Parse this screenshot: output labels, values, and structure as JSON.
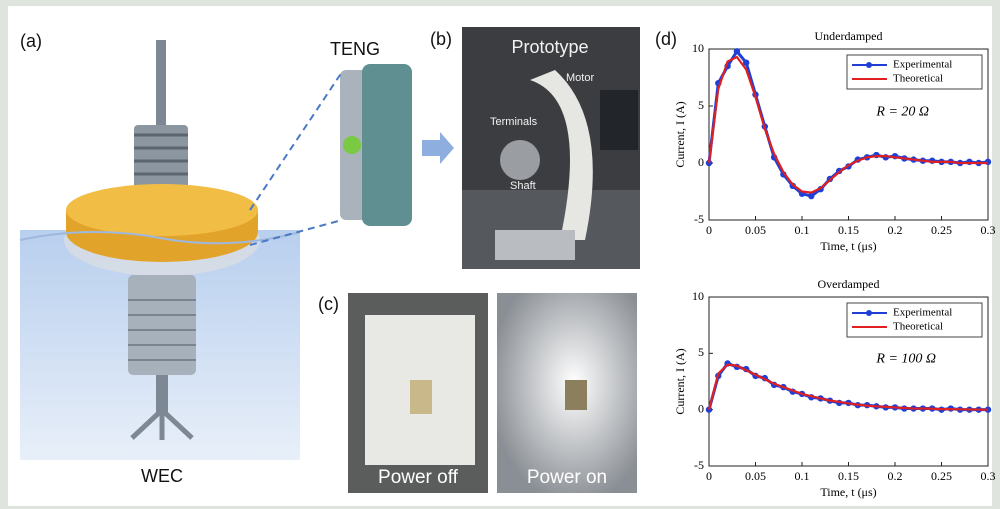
{
  "panels": {
    "a": {
      "label": "(a)",
      "teng": "TENG",
      "wec": "WEC"
    },
    "b": {
      "label": "(b)",
      "title": "Prototype",
      "motor": "Motor",
      "terminals": "Terminals",
      "shaft": "Shaft"
    },
    "c": {
      "label": "(c)",
      "off": "Power off",
      "on": "Power on"
    },
    "d": {
      "label": "(d)"
    }
  },
  "chart_data": [
    {
      "type": "line",
      "title": "Underdamped",
      "x_label": "Time, t (μs)",
      "y_label": "Current, I (A)",
      "annotation": "R = 20 Ω",
      "x": [
        0,
        0.01,
        0.02,
        0.03,
        0.04,
        0.05,
        0.06,
        0.07,
        0.08,
        0.09,
        0.1,
        0.11,
        0.12,
        0.13,
        0.14,
        0.15,
        0.16,
        0.17,
        0.18,
        0.19,
        0.2,
        0.21,
        0.22,
        0.23,
        0.24,
        0.25,
        0.26,
        0.27,
        0.28,
        0.29,
        0.3
      ],
      "series": [
        {
          "name": "Experimental",
          "color": "#1f3fd6",
          "markers": true,
          "values": [
            0,
            7.0,
            8.5,
            9.8,
            8.8,
            6.0,
            3.2,
            0.5,
            -1.0,
            -2.0,
            -2.7,
            -2.9,
            -2.3,
            -1.4,
            -0.7,
            -0.3,
            0.3,
            0.5,
            0.7,
            0.5,
            0.6,
            0.4,
            0.3,
            0.2,
            0.2,
            0.1,
            0.1,
            0.0,
            0.1,
            0.0,
            0.1
          ]
        },
        {
          "name": "Theoretical",
          "color": "#e02020",
          "markers": false,
          "values": [
            0,
            6.5,
            8.9,
            9.3,
            8.2,
            5.8,
            3.0,
            0.8,
            -0.8,
            -1.9,
            -2.5,
            -2.6,
            -2.2,
            -1.5,
            -0.8,
            -0.2,
            0.2,
            0.5,
            0.6,
            0.6,
            0.5,
            0.4,
            0.3,
            0.2,
            0.1,
            0.1,
            0.1,
            0.0,
            0.0,
            0.0,
            0.0
          ]
        }
      ],
      "xlim": [
        0,
        0.3
      ],
      "xticks": [
        0,
        0.05,
        0.1,
        0.15,
        0.2,
        0.25,
        0.3
      ],
      "ylim": [
        -5,
        10
      ],
      "yticks": [
        -5,
        0,
        5,
        10
      ],
      "grid": false,
      "legend": "upper-right"
    },
    {
      "type": "line",
      "title": "Overdamped",
      "x_label": "Time, t (μs)",
      "y_label": "Current, I (A)",
      "annotation": "R = 100 Ω",
      "x": [
        0,
        0.01,
        0.02,
        0.03,
        0.04,
        0.05,
        0.06,
        0.07,
        0.08,
        0.09,
        0.1,
        0.11,
        0.12,
        0.13,
        0.14,
        0.15,
        0.16,
        0.17,
        0.18,
        0.19,
        0.2,
        0.21,
        0.22,
        0.23,
        0.24,
        0.25,
        0.26,
        0.27,
        0.28,
        0.29,
        0.3
      ],
      "series": [
        {
          "name": "Experimental",
          "color": "#1f3fd6",
          "markers": true,
          "values": [
            0,
            3.0,
            4.1,
            3.8,
            3.6,
            3.0,
            2.8,
            2.2,
            2.0,
            1.6,
            1.4,
            1.1,
            1.0,
            0.8,
            0.6,
            0.6,
            0.4,
            0.4,
            0.3,
            0.2,
            0.2,
            0.1,
            0.1,
            0.1,
            0.1,
            0.0,
            0.1,
            0.0,
            0.0,
            0.0,
            0.0
          ]
        },
        {
          "name": "Theoretical",
          "color": "#e02020",
          "markers": false,
          "values": [
            0,
            3.2,
            4.0,
            3.9,
            3.5,
            3.1,
            2.7,
            2.3,
            2.0,
            1.7,
            1.4,
            1.2,
            1.0,
            0.8,
            0.7,
            0.55,
            0.45,
            0.35,
            0.3,
            0.25,
            0.2,
            0.15,
            0.1,
            0.1,
            0.08,
            0.05,
            0.05,
            0.03,
            0.02,
            0.01,
            0.0
          ]
        }
      ],
      "xlim": [
        0,
        0.3
      ],
      "xticks": [
        0,
        0.05,
        0.1,
        0.15,
        0.2,
        0.25,
        0.3
      ],
      "ylim": [
        -5,
        10
      ],
      "yticks": [
        -5,
        0,
        5,
        10
      ],
      "grid": false,
      "legend": "upper-right"
    }
  ]
}
